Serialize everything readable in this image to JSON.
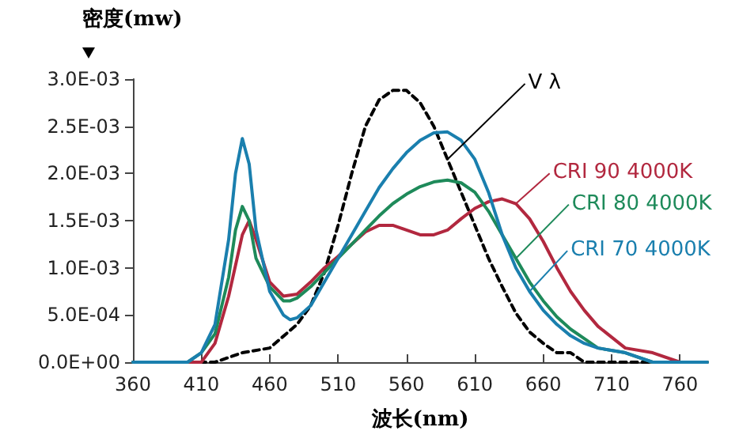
{
  "chart_data": {
    "type": "line",
    "xlabel": "波长(nm)",
    "ylabel": "密度(mw)",
    "marker": "none",
    "grid": false,
    "xlim": [
      360,
      780
    ],
    "xticks": [
      360,
      410,
      460,
      510,
      560,
      610,
      660,
      710,
      760
    ],
    "ylim": [
      0,
      0.003
    ],
    "yticks": [
      {
        "value": 0,
        "label": "0.0E+00"
      },
      {
        "value": 0.0005,
        "label": "5.0E-04"
      },
      {
        "value": 0.001,
        "label": "1.0E-03"
      },
      {
        "value": 0.0015,
        "label": "1.5E-03"
      },
      {
        "value": 0.002,
        "label": "2.0E-03"
      },
      {
        "value": 0.0025,
        "label": "2.5E-03"
      },
      {
        "value": 0.003,
        "label": "3.0E-03"
      }
    ],
    "series": [
      {
        "name": "V λ",
        "color": "#000000",
        "line_style": "dashed",
        "x": [
          360,
          400,
          420,
          440,
          460,
          480,
          490,
          500,
          510,
          520,
          530,
          540,
          550,
          560,
          570,
          580,
          590,
          600,
          610,
          620,
          630,
          640,
          650,
          660,
          670,
          680,
          690,
          700,
          720,
          740,
          760
        ],
        "values": [
          0,
          0,
          0,
          0.0001,
          0.00015,
          0.0004,
          0.0006,
          0.00095,
          0.00145,
          0.002,
          0.0025,
          0.00278,
          0.00288,
          0.00288,
          0.00275,
          0.0025,
          0.00215,
          0.0018,
          0.00145,
          0.0011,
          0.0008,
          0.00052,
          0.00032,
          0.0002,
          0.0001,
          0.0001,
          0,
          0,
          0,
          0,
          0
        ]
      },
      {
        "name": "CRI 90 4000K",
        "color": "#b2283f",
        "line_style": "solid",
        "x": [
          360,
          400,
          410,
          420,
          430,
          440,
          445,
          450,
          460,
          470,
          480,
          490,
          500,
          510,
          520,
          530,
          540,
          550,
          560,
          570,
          580,
          590,
          600,
          610,
          620,
          630,
          640,
          650,
          660,
          670,
          680,
          690,
          700,
          720,
          740,
          760,
          780
        ],
        "values": [
          0,
          0,
          0,
          0.0002,
          0.0007,
          0.00135,
          0.0015,
          0.0013,
          0.00085,
          0.0007,
          0.00072,
          0.00085,
          0.001,
          0.00112,
          0.00125,
          0.00138,
          0.00145,
          0.00145,
          0.0014,
          0.00135,
          0.00135,
          0.0014,
          0.00152,
          0.00163,
          0.0017,
          0.00173,
          0.00168,
          0.00152,
          0.00128,
          0.001,
          0.00075,
          0.00055,
          0.00038,
          0.00015,
          0.0001,
          0,
          0
        ]
      },
      {
        "name": "CRI 80 4000K",
        "color": "#1e8a5a",
        "line_style": "solid",
        "x": [
          360,
          400,
          410,
          420,
          430,
          435,
          440,
          445,
          450,
          460,
          470,
          475,
          480,
          490,
          500,
          510,
          520,
          530,
          540,
          550,
          560,
          570,
          580,
          590,
          600,
          610,
          620,
          630,
          640,
          650,
          660,
          670,
          680,
          690,
          700,
          720,
          740,
          760,
          780
        ],
        "values": [
          0,
          0,
          0.0001,
          0.0003,
          0.0009,
          0.0014,
          0.00165,
          0.0015,
          0.0011,
          0.0008,
          0.00065,
          0.00065,
          0.00068,
          0.0008,
          0.00095,
          0.0011,
          0.00125,
          0.0014,
          0.00155,
          0.00168,
          0.00178,
          0.00186,
          0.00191,
          0.00193,
          0.0019,
          0.0018,
          0.0016,
          0.00135,
          0.0011,
          0.00085,
          0.00065,
          0.00048,
          0.00035,
          0.00025,
          0.00015,
          0.0001,
          0,
          0,
          0
        ]
      },
      {
        "name": "CRI 70 4000K",
        "color": "#1a7fae",
        "line_style": "solid",
        "x": [
          360,
          390,
          400,
          410,
          420,
          430,
          435,
          440,
          445,
          450,
          460,
          470,
          475,
          480,
          490,
          500,
          510,
          520,
          530,
          540,
          550,
          560,
          570,
          580,
          590,
          600,
          610,
          620,
          630,
          640,
          650,
          660,
          670,
          680,
          690,
          700,
          720,
          740,
          760,
          780
        ],
        "values": [
          0,
          0,
          0,
          0.0001,
          0.0004,
          0.0013,
          0.002,
          0.00237,
          0.0021,
          0.0014,
          0.00075,
          0.0005,
          0.00045,
          0.00047,
          0.0006,
          0.00085,
          0.0011,
          0.00135,
          0.0016,
          0.00185,
          0.00205,
          0.00222,
          0.00235,
          0.00243,
          0.00244,
          0.00235,
          0.00215,
          0.0018,
          0.00135,
          0.001,
          0.00075,
          0.00055,
          0.0004,
          0.00028,
          0.0002,
          0.00015,
          0.0001,
          0,
          0,
          0
        ]
      }
    ]
  }
}
